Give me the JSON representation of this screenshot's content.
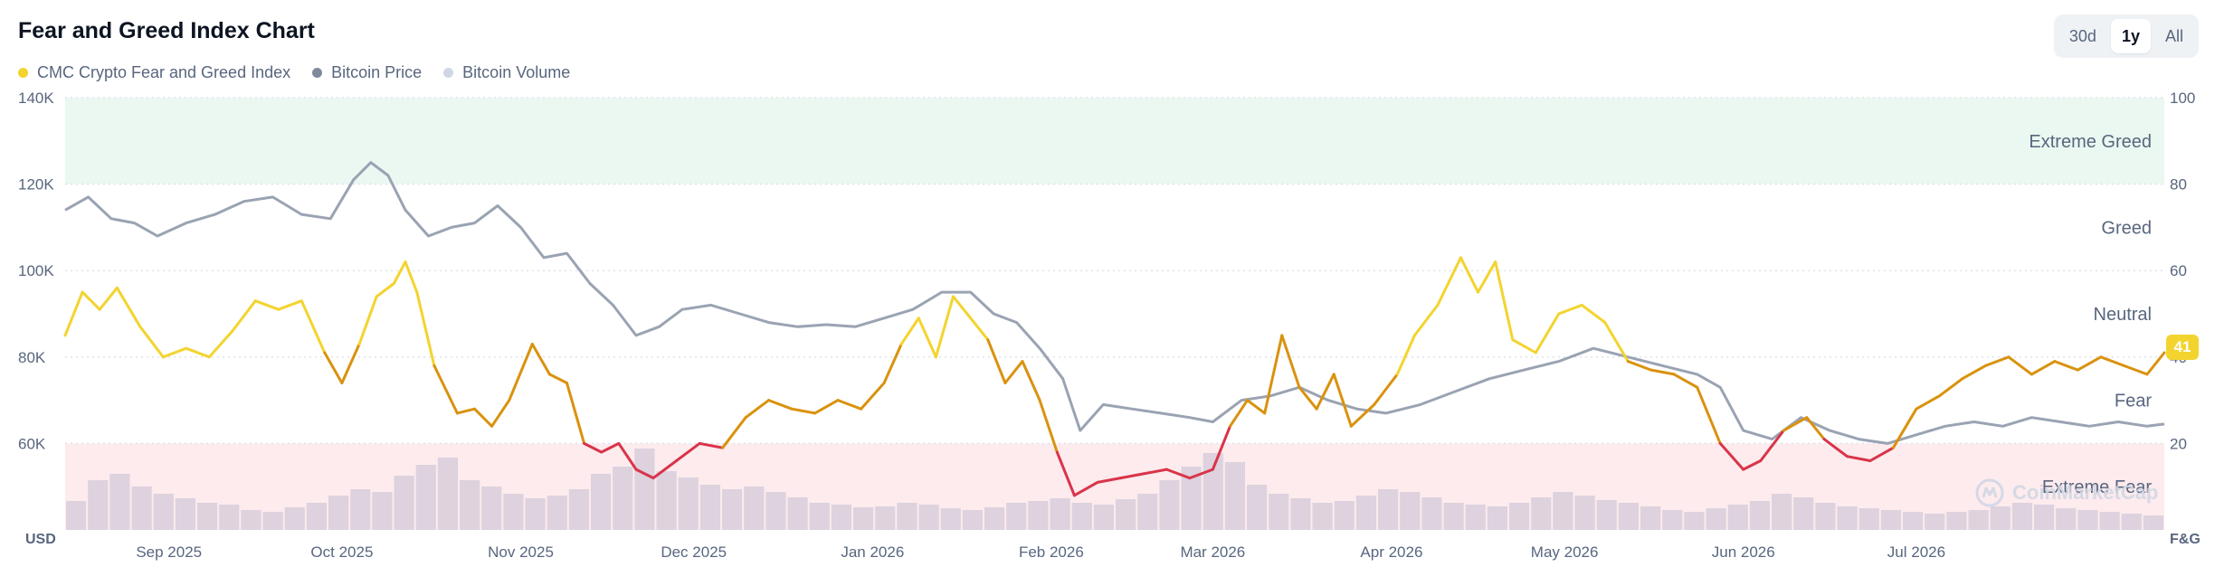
{
  "header": {
    "title": "Fear and Greed Index Chart",
    "ranges": [
      "30d",
      "1y",
      "All"
    ],
    "active_range": "1y"
  },
  "legend": [
    {
      "label": "CMC Crypto Fear and Greed Index",
      "color": "#f3d42f"
    },
    {
      "label": "Bitcoin Price",
      "color": "#808a9d"
    },
    {
      "label": "Bitcoin Volume",
      "color": "#cfd6e4"
    }
  ],
  "watermark": "CoinMarketCap",
  "current_value": "41",
  "chart_data": {
    "type": "line",
    "x_type": "date",
    "x_range": [
      "2025-08-14",
      "2026-08-13"
    ],
    "x_ticks": [
      {
        "date": "2025-09-01",
        "label": "Sep 2025"
      },
      {
        "date": "2025-10-01",
        "label": "Oct 2025"
      },
      {
        "date": "2025-11-01",
        "label": "Nov 2025"
      },
      {
        "date": "2025-12-01",
        "label": "Dec 2025"
      },
      {
        "date": "2026-01-01",
        "label": "Jan 2026"
      },
      {
        "date": "2026-02-01",
        "label": "Feb 2026"
      },
      {
        "date": "2026-03-01",
        "label": "Mar 2026"
      },
      {
        "date": "2026-04-01",
        "label": "Apr 2026"
      },
      {
        "date": "2026-05-01",
        "label": "May 2026"
      },
      {
        "date": "2026-06-01",
        "label": "Jun 2026"
      },
      {
        "date": "2026-07-01",
        "label": "Jul 2026"
      }
    ],
    "left_axis": {
      "label": "USD",
      "range": [
        40000,
        140000
      ],
      "ticks": [
        "140K",
        "120K",
        "100K",
        "80K",
        "60K"
      ],
      "tick_values": [
        140000,
        120000,
        100000,
        80000,
        60000
      ]
    },
    "right_axis": {
      "label": "F&G",
      "range": [
        0,
        100
      ],
      "ticks": [
        "100",
        "80",
        "60",
        "40",
        "20"
      ],
      "tick_values": [
        100,
        80,
        60,
        40,
        20
      ]
    },
    "zones": [
      {
        "name": "Extreme Greed",
        "from": 80,
        "to": 100,
        "color": "#eaf8f1"
      },
      {
        "name": "Greed",
        "from": 60,
        "to": 80
      },
      {
        "name": "Neutral",
        "from": 40,
        "to": 60
      },
      {
        "name": "Fear",
        "from": 20,
        "to": 40
      },
      {
        "name": "Extreme Fear",
        "from": 0,
        "to": 20,
        "color": "#fdebed"
      }
    ],
    "grid": true,
    "series": [
      {
        "name": "CMC Crypto Fear and Greed Index",
        "axis": "right",
        "colors": {
          "extreme_fear": "#d9344a",
          "fear": "#d9920f",
          "neutral": "#f3d42f",
          "greed": "#93d900"
        },
        "points": [
          [
            "2025-08-14",
            45
          ],
          [
            "2025-08-17",
            55
          ],
          [
            "2025-08-20",
            51
          ],
          [
            "2025-08-23",
            56
          ],
          [
            "2025-08-27",
            47
          ],
          [
            "2025-08-31",
            40
          ],
          [
            "2025-09-04",
            42
          ],
          [
            "2025-09-08",
            40
          ],
          [
            "2025-09-12",
            46
          ],
          [
            "2025-09-16",
            53
          ],
          [
            "2025-09-20",
            51
          ],
          [
            "2025-09-24",
            53
          ],
          [
            "2025-09-28",
            41
          ],
          [
            "2025-10-01",
            34
          ],
          [
            "2025-10-04",
            43
          ],
          [
            "2025-10-07",
            54
          ],
          [
            "2025-10-10",
            57
          ],
          [
            "2025-10-12",
            62
          ],
          [
            "2025-10-14",
            55
          ],
          [
            "2025-10-17",
            38
          ],
          [
            "2025-10-21",
            27
          ],
          [
            "2025-10-24",
            28
          ],
          [
            "2025-10-27",
            24
          ],
          [
            "2025-10-30",
            30
          ],
          [
            "2025-11-03",
            43
          ],
          [
            "2025-11-06",
            36
          ],
          [
            "2025-11-09",
            34
          ],
          [
            "2025-11-12",
            20
          ],
          [
            "2025-11-15",
            18
          ],
          [
            "2025-11-18",
            20
          ],
          [
            "2025-11-21",
            14
          ],
          [
            "2025-11-24",
            12
          ],
          [
            "2025-11-28",
            16
          ],
          [
            "2025-12-02",
            20
          ],
          [
            "2025-12-06",
            19
          ],
          [
            "2025-12-10",
            26
          ],
          [
            "2025-12-14",
            30
          ],
          [
            "2025-12-18",
            28
          ],
          [
            "2025-12-22",
            27
          ],
          [
            "2025-12-26",
            30
          ],
          [
            "2025-12-30",
            28
          ],
          [
            "2026-01-03",
            34
          ],
          [
            "2026-01-06",
            43
          ],
          [
            "2026-01-09",
            49
          ],
          [
            "2026-01-12",
            40
          ],
          [
            "2026-01-15",
            54
          ],
          [
            "2026-01-18",
            49
          ],
          [
            "2026-01-21",
            44
          ],
          [
            "2026-01-24",
            34
          ],
          [
            "2026-01-27",
            39
          ],
          [
            "2026-01-30",
            30
          ],
          [
            "2026-02-02",
            18
          ],
          [
            "2026-02-05",
            8
          ],
          [
            "2026-02-09",
            11
          ],
          [
            "2026-02-13",
            12
          ],
          [
            "2026-02-17",
            13
          ],
          [
            "2026-02-21",
            14
          ],
          [
            "2026-02-25",
            12
          ],
          [
            "2026-03-01",
            14
          ],
          [
            "2026-03-04",
            24
          ],
          [
            "2026-03-07",
            30
          ],
          [
            "2026-03-10",
            27
          ],
          [
            "2026-03-13",
            45
          ],
          [
            "2026-03-16",
            33
          ],
          [
            "2026-03-19",
            28
          ],
          [
            "2026-03-22",
            36
          ],
          [
            "2026-03-25",
            24
          ],
          [
            "2026-03-29",
            29
          ],
          [
            "2026-04-02",
            36
          ],
          [
            "2026-04-05",
            45
          ],
          [
            "2026-04-09",
            52
          ],
          [
            "2026-04-13",
            63
          ],
          [
            "2026-04-16",
            55
          ],
          [
            "2026-04-19",
            62
          ],
          [
            "2026-04-22",
            44
          ],
          [
            "2026-04-26",
            41
          ],
          [
            "2026-04-30",
            50
          ],
          [
            "2026-05-04",
            52
          ],
          [
            "2026-05-08",
            48
          ],
          [
            "2026-05-12",
            39
          ],
          [
            "2026-05-16",
            37
          ],
          [
            "2026-05-20",
            36
          ],
          [
            "2026-05-24",
            33
          ],
          [
            "2026-05-28",
            20
          ],
          [
            "2026-06-01",
            14
          ],
          [
            "2026-06-04",
            16
          ],
          [
            "2026-06-08",
            23
          ],
          [
            "2026-06-12",
            26
          ],
          [
            "2026-06-15",
            21
          ],
          [
            "2026-06-19",
            17
          ],
          [
            "2026-06-23",
            16
          ],
          [
            "2026-06-27",
            19
          ],
          [
            "2026-07-01",
            28
          ],
          [
            "2026-07-05",
            31
          ],
          [
            "2026-07-09",
            35
          ],
          [
            "2026-07-13",
            38
          ],
          [
            "2026-07-17",
            40
          ],
          [
            "2026-07-21",
            36
          ],
          [
            "2026-07-25",
            39
          ],
          [
            "2026-07-29",
            37
          ],
          [
            "2026-08-02",
            40
          ],
          [
            "2026-08-06",
            38
          ],
          [
            "2026-08-10",
            36
          ],
          [
            "2026-08-13",
            41
          ]
        ]
      },
      {
        "name": "Bitcoin Price",
        "axis": "left",
        "color": "#9aa3b2",
        "points": [
          [
            "2025-08-14",
            114000
          ],
          [
            "2025-08-18",
            117000
          ],
          [
            "2025-08-22",
            112000
          ],
          [
            "2025-08-26",
            111000
          ],
          [
            "2025-08-30",
            108000
          ],
          [
            "2025-09-04",
            111000
          ],
          [
            "2025-09-09",
            113000
          ],
          [
            "2025-09-14",
            116000
          ],
          [
            "2025-09-19",
            117000
          ],
          [
            "2025-09-24",
            113000
          ],
          [
            "2025-09-29",
            112000
          ],
          [
            "2025-10-03",
            121000
          ],
          [
            "2025-10-06",
            125000
          ],
          [
            "2025-10-09",
            122000
          ],
          [
            "2025-10-12",
            114000
          ],
          [
            "2025-10-16",
            108000
          ],
          [
            "2025-10-20",
            110000
          ],
          [
            "2025-10-24",
            111000
          ],
          [
            "2025-10-28",
            115000
          ],
          [
            "2025-11-01",
            110000
          ],
          [
            "2025-11-05",
            103000
          ],
          [
            "2025-11-09",
            104000
          ],
          [
            "2025-11-13",
            97000
          ],
          [
            "2025-11-17",
            92000
          ],
          [
            "2025-11-21",
            85000
          ],
          [
            "2025-11-25",
            87000
          ],
          [
            "2025-11-29",
            91000
          ],
          [
            "2025-12-04",
            92000
          ],
          [
            "2025-12-09",
            90000
          ],
          [
            "2025-12-14",
            88000
          ],
          [
            "2025-12-19",
            87000
          ],
          [
            "2025-12-24",
            87500
          ],
          [
            "2025-12-29",
            87000
          ],
          [
            "2026-01-03",
            89000
          ],
          [
            "2026-01-08",
            91000
          ],
          [
            "2026-01-13",
            95000
          ],
          [
            "2026-01-18",
            95000
          ],
          [
            "2026-01-22",
            90000
          ],
          [
            "2026-01-26",
            88000
          ],
          [
            "2026-01-30",
            82000
          ],
          [
            "2026-02-03",
            75000
          ],
          [
            "2026-02-06",
            63000
          ],
          [
            "2026-02-10",
            69000
          ],
          [
            "2026-02-15",
            68000
          ],
          [
            "2026-02-20",
            67000
          ],
          [
            "2026-02-25",
            66000
          ],
          [
            "2026-03-01",
            65000
          ],
          [
            "2026-03-06",
            70000
          ],
          [
            "2026-03-11",
            71000
          ],
          [
            "2026-03-16",
            73000
          ],
          [
            "2026-03-21",
            70000
          ],
          [
            "2026-03-26",
            68000
          ],
          [
            "2026-03-31",
            67000
          ],
          [
            "2026-04-06",
            69000
          ],
          [
            "2026-04-12",
            72000
          ],
          [
            "2026-04-18",
            75000
          ],
          [
            "2026-04-24",
            77000
          ],
          [
            "2026-04-30",
            79000
          ],
          [
            "2026-05-06",
            82000
          ],
          [
            "2026-05-12",
            80000
          ],
          [
            "2026-05-18",
            78000
          ],
          [
            "2026-05-24",
            76000
          ],
          [
            "2026-05-28",
            73000
          ],
          [
            "2026-06-01",
            63000
          ],
          [
            "2026-06-06",
            61000
          ],
          [
            "2026-06-11",
            66000
          ],
          [
            "2026-06-16",
            63000
          ],
          [
            "2026-06-21",
            61000
          ],
          [
            "2026-06-26",
            60000
          ],
          [
            "2026-07-01",
            62000
          ],
          [
            "2026-07-06",
            64000
          ],
          [
            "2026-07-11",
            65000
          ],
          [
            "2026-07-16",
            64000
          ],
          [
            "2026-07-21",
            66000
          ],
          [
            "2026-07-26",
            65000
          ],
          [
            "2026-07-31",
            64000
          ],
          [
            "2026-08-05",
            65000
          ],
          [
            "2026-08-10",
            64000
          ],
          [
            "2026-08-13",
            64500
          ]
        ]
      },
      {
        "name": "Bitcoin Volume",
        "axis": "volume",
        "color": "#d9cfdb",
        "type": "bar",
        "relative_values": [
          0.32,
          0.55,
          0.62,
          0.48,
          0.4,
          0.35,
          0.3,
          0.28,
          0.22,
          0.2,
          0.25,
          0.3,
          0.38,
          0.45,
          0.42,
          0.6,
          0.72,
          0.8,
          0.55,
          0.48,
          0.4,
          0.35,
          0.38,
          0.45,
          0.62,
          0.7,
          0.9,
          0.65,
          0.58,
          0.5,
          0.45,
          0.48,
          0.42,
          0.36,
          0.3,
          0.28,
          0.25,
          0.26,
          0.3,
          0.28,
          0.24,
          0.22,
          0.25,
          0.3,
          0.32,
          0.35,
          0.3,
          0.28,
          0.34,
          0.4,
          0.55,
          0.7,
          0.85,
          0.75,
          0.5,
          0.4,
          0.35,
          0.3,
          0.32,
          0.38,
          0.45,
          0.42,
          0.36,
          0.3,
          0.28,
          0.26,
          0.3,
          0.36,
          0.42,
          0.38,
          0.33,
          0.3,
          0.26,
          0.22,
          0.2,
          0.24,
          0.28,
          0.32,
          0.4,
          0.36,
          0.3,
          0.26,
          0.24,
          0.22,
          0.2,
          0.18,
          0.2,
          0.22,
          0.26,
          0.3,
          0.28,
          0.24,
          0.22,
          0.2,
          0.18,
          0.16
        ]
      }
    ]
  }
}
